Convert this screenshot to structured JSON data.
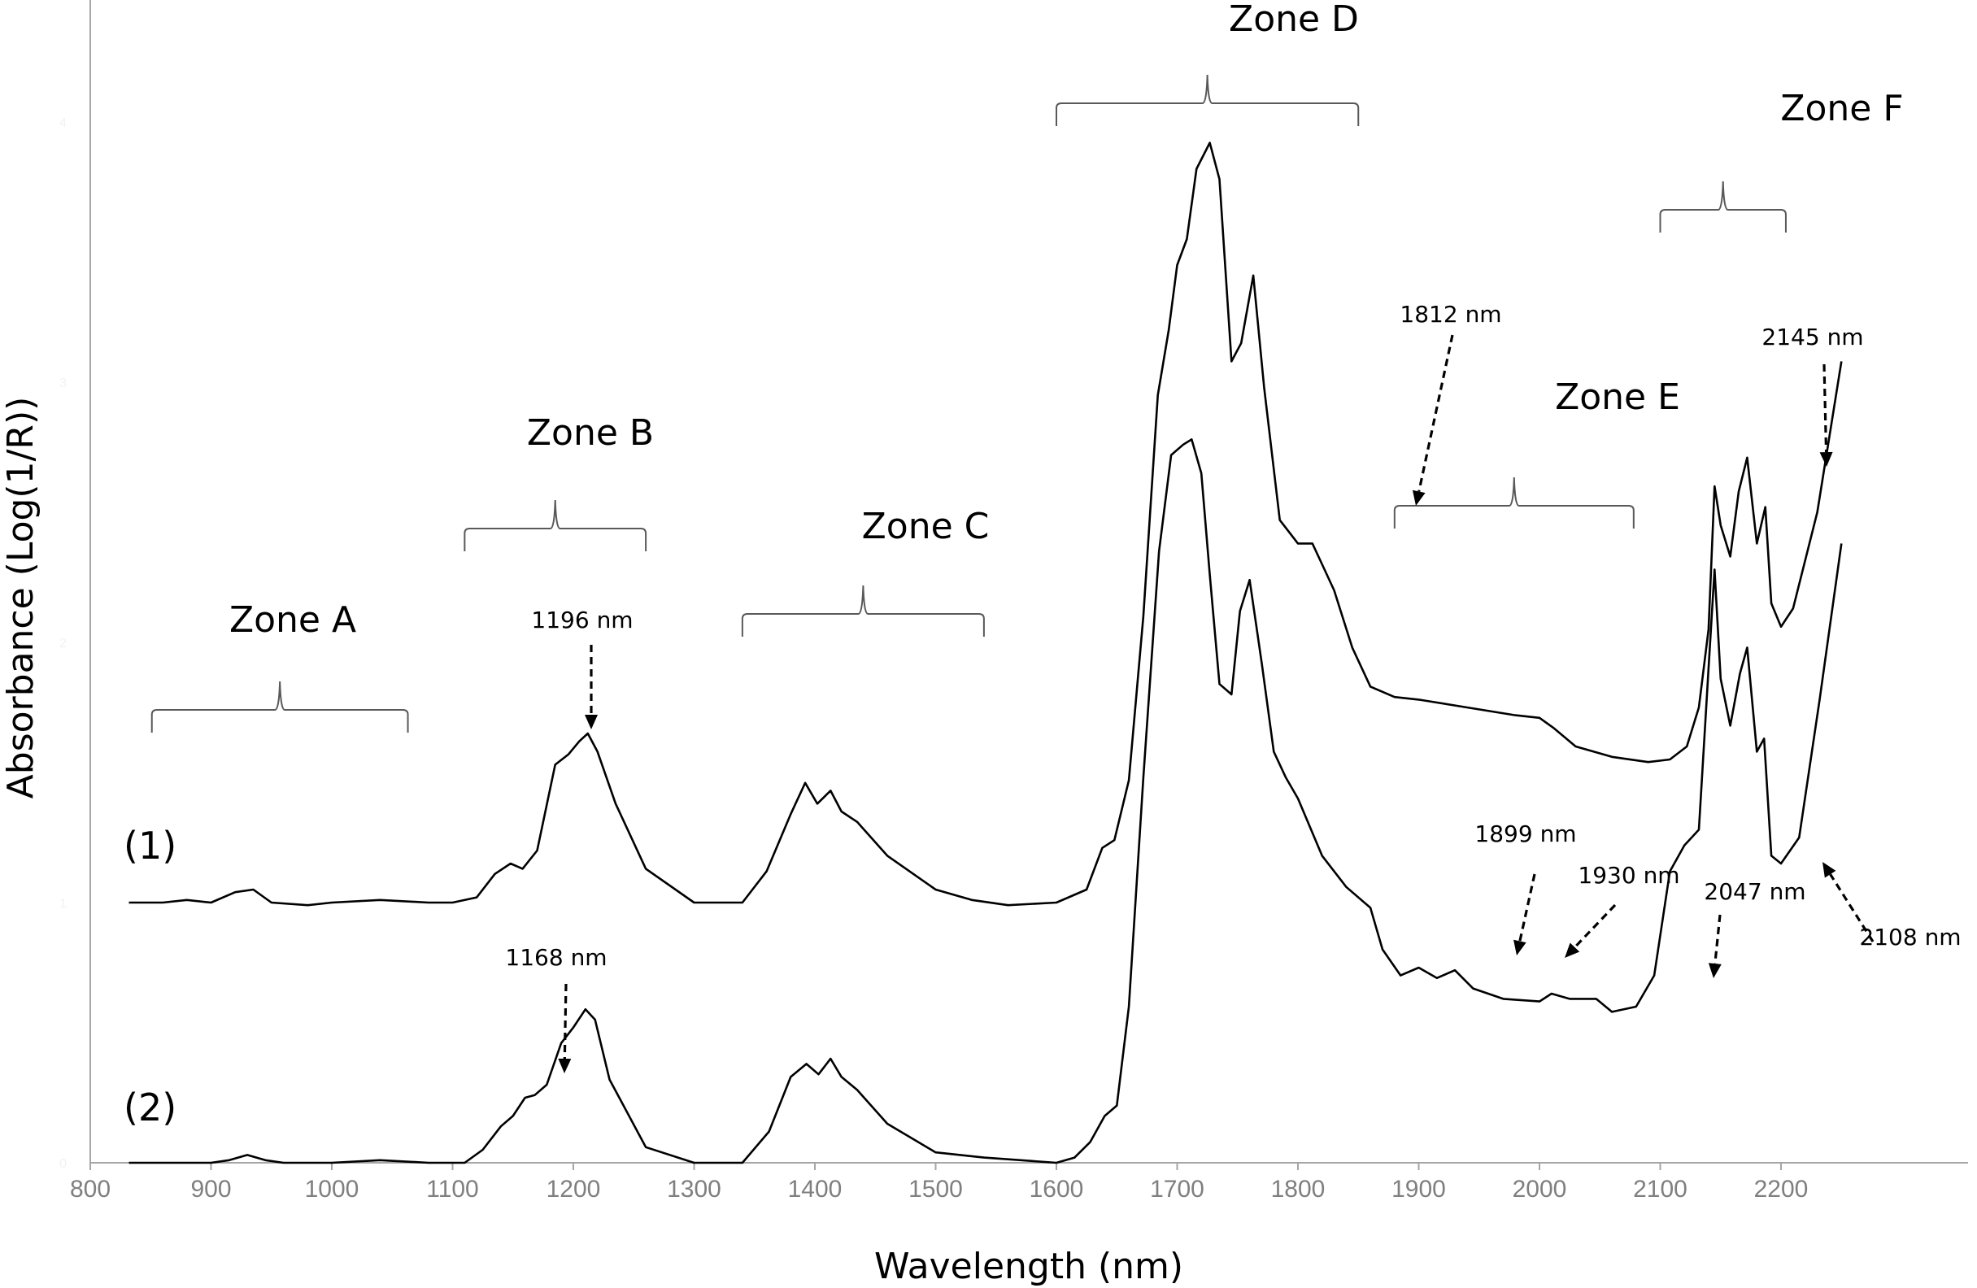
{
  "chart_data": {
    "type": "line",
    "title": "",
    "xlabel": "Wavelength (nm)",
    "ylabel": "Absorbance (Log(1/R))",
    "xlim": [
      800,
      2250
    ],
    "ylim": [
      0,
      4.5
    ],
    "x_ticks": [
      "800",
      "900",
      "1000",
      "1100",
      "1200",
      "1300",
      "1400",
      "1500",
      "1600",
      "1700",
      "1800",
      "1900",
      "2000",
      "2100",
      "2200"
    ],
    "y_ticks": [
      "0",
      "1",
      "2",
      "3",
      "4"
    ],
    "grid": false,
    "series": [
      {
        "name": "(1)",
        "x": [
          832,
          860,
          880,
          900,
          920,
          935,
          950,
          980,
          1000,
          1040,
          1080,
          1100,
          1120,
          1135,
          1148,
          1158,
          1170,
          1185,
          1196,
          1205,
          1212,
          1220,
          1235,
          1260,
          1300,
          1340,
          1360,
          1380,
          1392,
          1402,
          1413,
          1422,
          1435,
          1460,
          1500,
          1530,
          1560,
          1600,
          1625,
          1638,
          1648,
          1660,
          1672,
          1684,
          1693,
          1700,
          1708,
          1716,
          1727,
          1735,
          1745,
          1753,
          1763,
          1772,
          1785,
          1800,
          1812,
          1820,
          1830,
          1845,
          1860,
          1880,
          1900,
          1940,
          1980,
          2000,
          2012,
          2030,
          2060,
          2090,
          2108,
          2122,
          2132,
          2140,
          2145,
          2150,
          2158,
          2165,
          2172,
          2180,
          2187,
          2192,
          2200,
          2210,
          2230,
          2250
        ],
        "values": [
          1.0,
          1.0,
          1.01,
          1.0,
          1.04,
          1.05,
          1.0,
          0.99,
          1.0,
          1.01,
          1.0,
          1.0,
          1.02,
          1.11,
          1.15,
          1.13,
          1.2,
          1.53,
          1.57,
          1.62,
          1.65,
          1.58,
          1.38,
          1.13,
          1.0,
          1.0,
          1.12,
          1.34,
          1.46,
          1.38,
          1.43,
          1.35,
          1.31,
          1.18,
          1.05,
          1.01,
          0.99,
          1.0,
          1.05,
          1.21,
          1.24,
          1.47,
          2.1,
          2.95,
          3.2,
          3.45,
          3.55,
          3.82,
          3.92,
          3.78,
          3.08,
          3.15,
          3.41,
          2.98,
          2.47,
          2.38,
          2.38,
          2.3,
          2.2,
          1.98,
          1.83,
          1.79,
          1.78,
          1.75,
          1.72,
          1.71,
          1.67,
          1.6,
          1.56,
          1.54,
          1.55,
          1.6,
          1.75,
          2.05,
          2.6,
          2.45,
          2.33,
          2.58,
          2.71,
          2.38,
          2.52,
          2.15,
          2.06,
          2.13,
          2.5,
          3.08
        ]
      },
      {
        "name": "(2)",
        "x": [
          832,
          870,
          900,
          915,
          930,
          945,
          960,
          1000,
          1040,
          1080,
          1110,
          1125,
          1140,
          1150,
          1160,
          1168,
          1178,
          1190,
          1200,
          1210,
          1218,
          1230,
          1260,
          1300,
          1340,
          1362,
          1380,
          1393,
          1403,
          1413,
          1422,
          1435,
          1460,
          1500,
          1540,
          1600,
          1615,
          1628,
          1640,
          1650,
          1660,
          1672,
          1685,
          1695,
          1705,
          1712,
          1720,
          1727,
          1735,
          1745,
          1752,
          1760,
          1770,
          1780,
          1790,
          1800,
          1820,
          1840,
          1860,
          1870,
          1885,
          1900,
          1915,
          1930,
          1945,
          1970,
          2000,
          2010,
          2025,
          2047,
          2060,
          2080,
          2095,
          2108,
          2120,
          2132,
          2140,
          2145,
          2150,
          2158,
          2166,
          2172,
          2180,
          2186,
          2192,
          2200,
          2215,
          2232,
          2250
        ],
        "values": [
          0.0,
          0.0,
          0.0,
          0.01,
          0.03,
          0.01,
          0.0,
          0.0,
          0.01,
          0.0,
          0.0,
          0.05,
          0.14,
          0.18,
          0.25,
          0.26,
          0.3,
          0.46,
          0.52,
          0.59,
          0.55,
          0.32,
          0.06,
          0.0,
          0.0,
          0.12,
          0.33,
          0.38,
          0.34,
          0.4,
          0.33,
          0.28,
          0.15,
          0.04,
          0.02,
          0.0,
          0.02,
          0.08,
          0.18,
          0.22,
          0.6,
          1.48,
          2.35,
          2.72,
          2.76,
          2.78,
          2.65,
          2.26,
          1.84,
          1.8,
          2.12,
          2.24,
          1.92,
          1.58,
          1.48,
          1.4,
          1.18,
          1.06,
          0.98,
          0.82,
          0.72,
          0.75,
          0.71,
          0.74,
          0.67,
          0.63,
          0.62,
          0.65,
          0.63,
          0.63,
          0.58,
          0.6,
          0.72,
          1.12,
          1.22,
          1.28,
          1.9,
          2.28,
          1.86,
          1.68,
          1.88,
          1.98,
          1.58,
          1.63,
          1.18,
          1.15,
          1.25,
          1.78,
          2.38
        ]
      }
    ],
    "annotations": {
      "zones": [
        {
          "label": "Zone A",
          "range": [
            851,
            1063
          ]
        },
        {
          "label": "Zone B",
          "range": [
            1110,
            1260
          ]
        },
        {
          "label": "Zone C",
          "range": [
            1340,
            1540
          ]
        },
        {
          "label": "Zone D",
          "range": [
            1600,
            1850
          ]
        },
        {
          "label": "Zone E",
          "range": [
            1880,
            2078
          ]
        },
        {
          "label": "Zone F",
          "range": [
            2100,
            2204
          ]
        }
      ],
      "peaks": [
        {
          "label": "1196 nm",
          "wavelength": 1196
        },
        {
          "label": "1168 nm",
          "wavelength": 1168
        },
        {
          "label": "1812 nm",
          "wavelength": 1812
        },
        {
          "label": "2145 nm",
          "wavelength": 2145
        },
        {
          "label": "1899 nm",
          "wavelength": 1899
        },
        {
          "label": "1930 nm",
          "wavelength": 1930
        },
        {
          "label": "2047 nm",
          "wavelength": 2047
        },
        {
          "label": "2108 nm",
          "wavelength": 2108
        }
      ]
    }
  }
}
